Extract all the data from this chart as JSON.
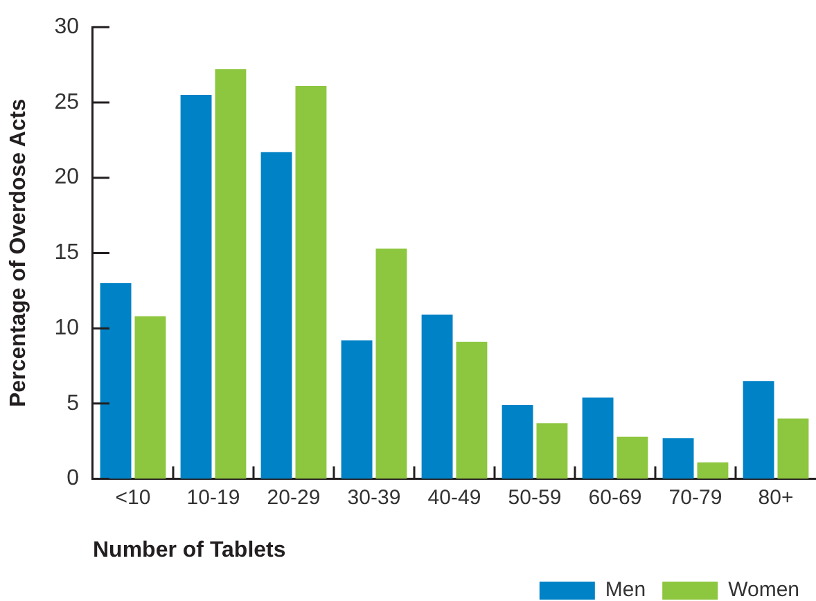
{
  "chart_data": {
    "type": "bar",
    "xlabel": "Number of Tablets",
    "ylabel": "Percentage of Overdose Acts",
    "categories": [
      "<10",
      "10-19",
      "20-29",
      "30-39",
      "40-49",
      "50-59",
      "60-69",
      "70-79",
      "80+"
    ],
    "series": [
      {
        "name": "Men",
        "color": "#0082c6",
        "values": [
          13.0,
          25.5,
          21.7,
          9.2,
          10.9,
          4.9,
          5.4,
          2.7,
          6.5
        ]
      },
      {
        "name": "Women",
        "color": "#8dc63f",
        "values": [
          10.8,
          27.2,
          26.1,
          15.3,
          9.1,
          3.7,
          2.8,
          1.1,
          4.0
        ]
      }
    ],
    "ylim": [
      0,
      30
    ],
    "yticks": [
      0,
      5,
      10,
      15,
      20,
      25,
      30
    ],
    "grid": false,
    "legend": "bottom right"
  }
}
